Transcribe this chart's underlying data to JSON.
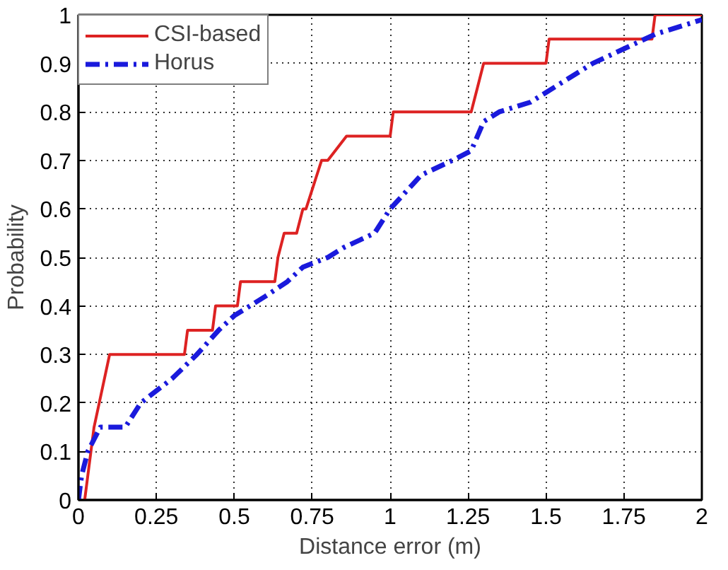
{
  "chart_data": {
    "type": "line",
    "xlabel": "Distance error (m)",
    "ylabel": "Probability",
    "xlim": [
      0,
      2
    ],
    "ylim": [
      0,
      1
    ],
    "xticks": [
      0,
      0.25,
      0.5,
      0.75,
      1,
      1.25,
      1.5,
      1.75,
      2
    ],
    "yticks": [
      0,
      0.1,
      0.2,
      0.3,
      0.4,
      0.5,
      0.6,
      0.7,
      0.8,
      0.9,
      1
    ],
    "grid": true,
    "legend": "top left",
    "marker": "none",
    "series": [
      {
        "name": "CSI-based",
        "color": "#dd2222",
        "line_style": "solid",
        "x": [
          0.02,
          0.05,
          0.1,
          0.34,
          0.35,
          0.43,
          0.44,
          0.51,
          0.52,
          0.63,
          0.64,
          0.66,
          0.7,
          0.72,
          0.73,
          0.78,
          0.8,
          0.86,
          1.0,
          1.01,
          1.26,
          1.28,
          1.3,
          1.5,
          1.51,
          1.84,
          1.85,
          2.0
        ],
        "values": [
          0,
          0.15,
          0.3,
          0.3,
          0.35,
          0.35,
          0.4,
          0.4,
          0.45,
          0.45,
          0.5,
          0.55,
          0.55,
          0.6,
          0.6,
          0.7,
          0.7,
          0.75,
          0.75,
          0.8,
          0.8,
          0.85,
          0.9,
          0.9,
          0.95,
          0.95,
          1,
          1
        ]
      },
      {
        "name": "Horus",
        "color": "#1a1adc",
        "line_style": "dashdot",
        "x": [
          0,
          0.01,
          0.03,
          0.07,
          0.15,
          0.2,
          0.3,
          0.38,
          0.45,
          0.5,
          0.55,
          0.6,
          0.67,
          0.72,
          0.8,
          0.85,
          0.95,
          1.0,
          1.1,
          1.2,
          1.26,
          1.3,
          1.35,
          1.45,
          1.55,
          1.65,
          1.75,
          1.85,
          1.95,
          2.0
        ],
        "values": [
          0,
          0.05,
          0.1,
          0.15,
          0.15,
          0.2,
          0.25,
          0.3,
          0.35,
          0.38,
          0.4,
          0.42,
          0.45,
          0.48,
          0.5,
          0.52,
          0.55,
          0.6,
          0.67,
          0.7,
          0.72,
          0.78,
          0.8,
          0.82,
          0.86,
          0.9,
          0.93,
          0.96,
          0.98,
          0.99
        ]
      }
    ]
  }
}
